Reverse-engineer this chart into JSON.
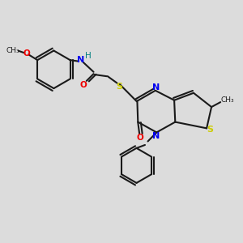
{
  "bg_color": "#dcdcdc",
  "bond_color": "#1a1a1a",
  "N_color": "#0000ee",
  "O_color": "#ee0000",
  "S_color": "#cccc00",
  "H_color": "#008080",
  "fig_w": 3.0,
  "fig_h": 3.0,
  "dpi": 100,
  "xlim": [
    0,
    10
  ],
  "ylim": [
    0,
    10
  ]
}
